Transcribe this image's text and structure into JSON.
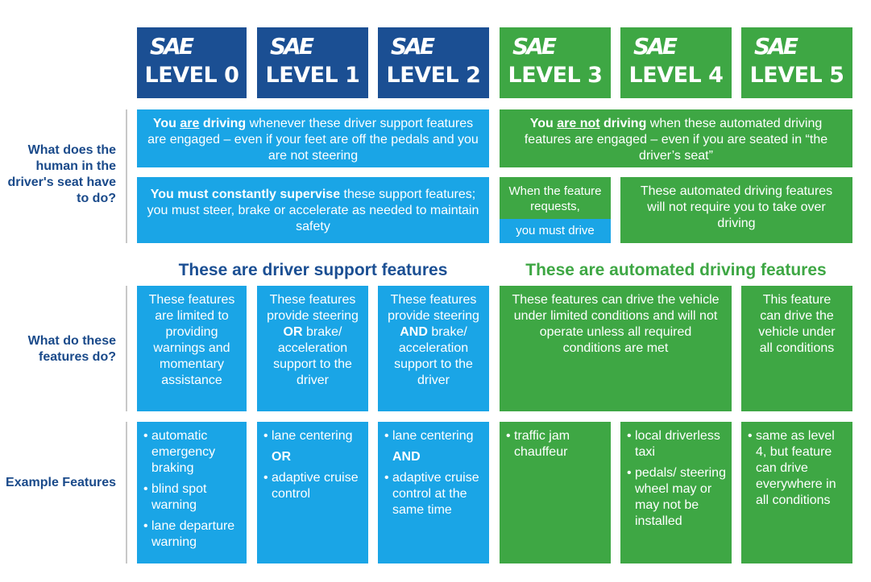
{
  "headers": [
    {
      "logo": "SAE",
      "label": "LEVEL 0"
    },
    {
      "logo": "SAE",
      "label": "LEVEL 1"
    },
    {
      "logo": "SAE",
      "label": "LEVEL 2"
    },
    {
      "logo": "SAE",
      "label": "LEVEL 3"
    },
    {
      "logo": "SAE",
      "label": "LEVEL 4"
    },
    {
      "logo": "SAE",
      "label": "LEVEL 5"
    }
  ],
  "row_labels": {
    "human": "What does the human in the driver's seat have to do?",
    "features": "What do these features do?",
    "examples": "Example Features"
  },
  "human": {
    "support_driving": {
      "p1": "You ",
      "p2": "are",
      "p3": " driving",
      "p4": " whenever these driver support features are engaged – even if your feet are off the pedals and you are not steering"
    },
    "automated_driving": {
      "p1": "You ",
      "p2": "are not",
      "p3": " driving",
      "p4": " when these automated driving features are engaged – even if you are seated in “the driver’s seat”"
    },
    "support_supervise": {
      "p1": "You must constantly supervise",
      "p2": " these support features; you must steer, brake or accelerate as needed to maintain safety"
    },
    "level3_request": "When the feature requests,",
    "level3_drive": "you must drive",
    "level45_no_takeover": "These automated driving features will not require you to take over driving"
  },
  "sections": {
    "support": "These are driver support features",
    "automated": "These are automated driving features"
  },
  "features": {
    "level0": "These features are limited to providing warnings and momentary assistance",
    "level1": {
      "p1": "These features provide steering ",
      "p2": "OR",
      "p3": " brake/ acceleration support to the driver"
    },
    "level2": {
      "p1": "These features provide steering ",
      "p2": "AND",
      "p3": " brake/ acceleration support to the driver"
    },
    "level34": "These features can drive the vehicle under limited conditions and will not operate unless all required conditions are met",
    "level5": "This feature can drive the vehicle under all conditions"
  },
  "examples": {
    "level0": [
      "automatic emergency braking",
      "blind spot warning",
      "lane departure warning"
    ],
    "level1": {
      "item1": "lane centering",
      "connector": "OR",
      "item2": "adaptive cruise control"
    },
    "level2": {
      "item1": "lane centering",
      "connector": "AND",
      "item2": "adaptive cruise control at the same time"
    },
    "level3": [
      "traffic jam chauffeur"
    ],
    "level4": [
      "local driverless taxi",
      "pedals/ steering wheel may or may not be installed"
    ],
    "level5": [
      "same as level 4, but feature can drive everywhere in all conditions"
    ]
  },
  "colors": {
    "dark_blue": "#1b4f93",
    "light_blue": "#1aa5e6",
    "green": "#3ea744",
    "label_text": "#1a4a8a"
  }
}
